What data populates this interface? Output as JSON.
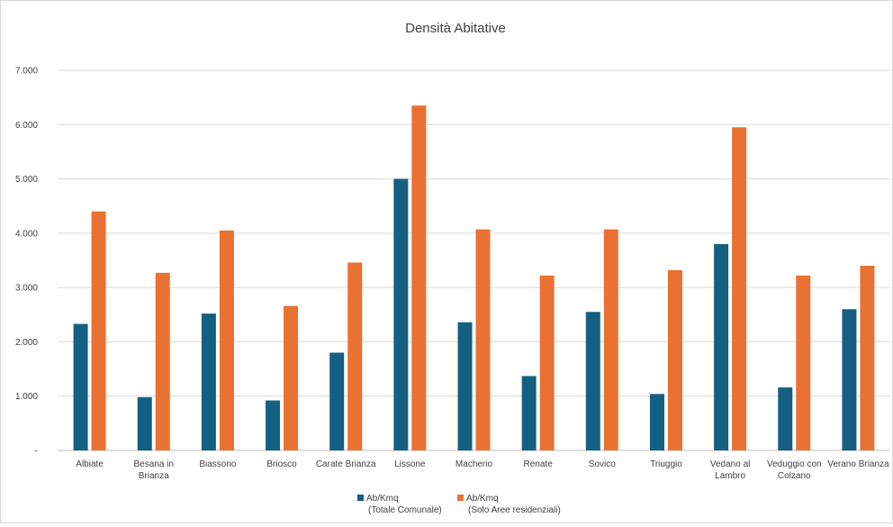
{
  "chart_data": {
    "type": "bar",
    "title": "Densità Abitative",
    "xlabel": "",
    "ylabel": "",
    "ylim": [
      0,
      7000
    ],
    "y_ticks": [
      "-",
      "1.000",
      "2.000",
      "3.000",
      "4.000",
      "5.000",
      "6.000",
      "7.000"
    ],
    "y_tick_values": [
      0,
      1000,
      2000,
      3000,
      4000,
      5000,
      6000,
      7000
    ],
    "grid": true,
    "legend_position": "bottom",
    "categories": [
      [
        "Albiate"
      ],
      [
        "Besana in",
        "Brianza"
      ],
      [
        "Biassono"
      ],
      [
        "Briosco"
      ],
      [
        "Carate Brianza"
      ],
      [
        "Lissone"
      ],
      [
        "Macherio"
      ],
      [
        "Renate"
      ],
      [
        "Sovico"
      ],
      [
        "Triuggio"
      ],
      [
        "Vedano al",
        "Lambro"
      ],
      [
        "Veduggio con",
        "Colzano"
      ],
      [
        "Verano Brianza"
      ]
    ],
    "series": [
      {
        "name_lines": [
          "Ab/Kmq",
          "(Totale Comunale)"
        ],
        "color": "#156082",
        "values": [
          2330,
          980,
          2520,
          920,
          1800,
          5000,
          2360,
          1370,
          2550,
          1040,
          3800,
          1160,
          2600
        ]
      },
      {
        "name_lines": [
          "Ab/Kmq",
          "(Solo Aree residenziali)"
        ],
        "color": "#E97132",
        "values": [
          4400,
          3270,
          4050,
          2660,
          3460,
          6350,
          4070,
          3220,
          4070,
          3320,
          5950,
          3220,
          3400
        ]
      }
    ],
    "colors": {
      "gridline": "#d9d9d9",
      "axis": "#bfbfbf"
    }
  }
}
